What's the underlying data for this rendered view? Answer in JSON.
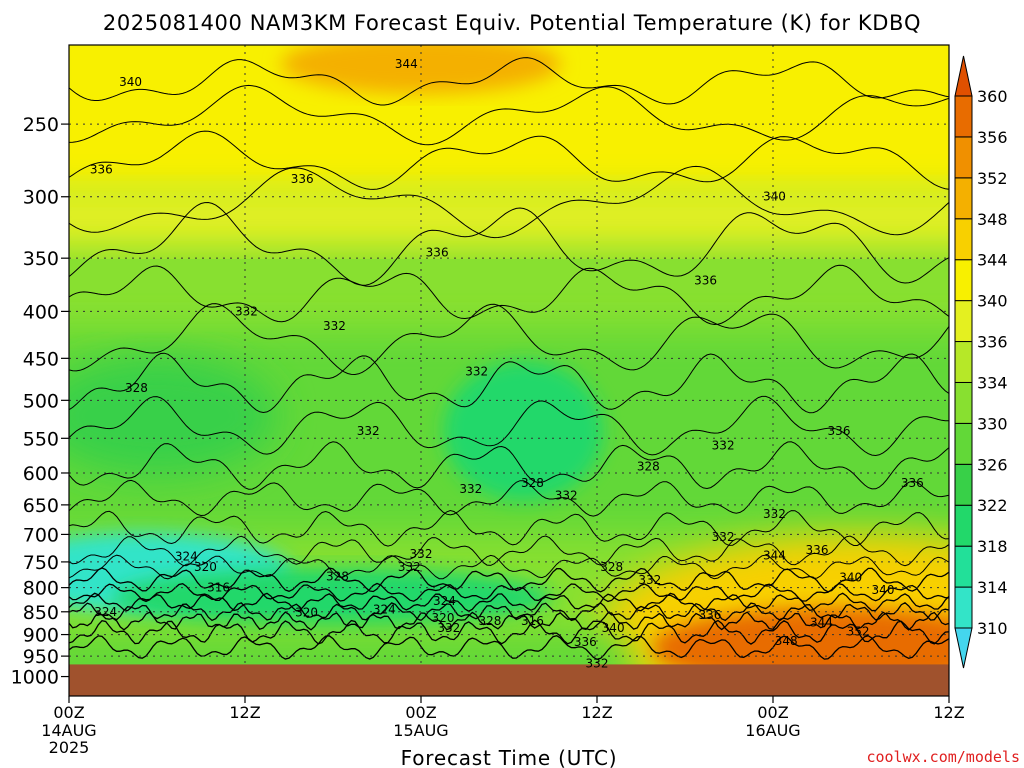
{
  "chart_data": {
    "type": "heatmap",
    "title": "2025081400 NAM3KM Forecast Equiv. Potential Temperature (K) for KDBQ",
    "xlabel": "Forecast Time (UTC)",
    "ylabel": "",
    "y_scale": "log",
    "y_reversed": true,
    "x_range_hours": [
      0,
      60
    ],
    "x_ticks": [
      {
        "hour": 0,
        "label": "00Z",
        "sublabels": [
          "14AUG",
          "2025"
        ]
      },
      {
        "hour": 12,
        "label": "12Z",
        "sublabels": []
      },
      {
        "hour": 24,
        "label": "00Z",
        "sublabels": [
          "15AUG"
        ]
      },
      {
        "hour": 36,
        "label": "12Z",
        "sublabels": []
      },
      {
        "hour": 48,
        "label": "00Z",
        "sublabels": [
          "16AUG"
        ]
      },
      {
        "hour": 60,
        "label": "12Z",
        "sublabels": []
      }
    ],
    "y_ticks": [
      250,
      300,
      350,
      400,
      450,
      500,
      550,
      600,
      650,
      700,
      750,
      800,
      850,
      900,
      950,
      1000
    ],
    "y_range": [
      205,
      1050
    ],
    "ground_level": 970,
    "grid": true,
    "colorbar": {
      "labels": [
        310,
        314,
        318,
        322,
        326,
        330,
        334,
        336,
        340,
        344,
        348,
        352,
        356,
        360
      ],
      "colors": [
        "#44d6ee",
        "#33e4c8",
        "#22e099",
        "#22d86a",
        "#38d048",
        "#62d838",
        "#88e030",
        "#b6e828",
        "#e4f020",
        "#f8f000",
        "#f8d000",
        "#f4b000",
        "#f09000",
        "#e86c00",
        "#e05000"
      ]
    },
    "background_colors": {
      "upper": "#f8e400",
      "mid": "#a8e030",
      "low": "#50c848",
      "cold_core": "#30e4c0",
      "warm_core": "#f29c00",
      "ground": "#a0522d"
    },
    "contour_labels": [
      {
        "text": "344",
        "hour": 23.0,
        "p": 215
      },
      {
        "text": "340",
        "hour": 4.2,
        "p": 225
      },
      {
        "text": "336",
        "hour": 2.2,
        "p": 280
      },
      {
        "text": "336",
        "hour": 15.9,
        "p": 287
      },
      {
        "text": "340",
        "hour": 48.1,
        "p": 300
      },
      {
        "text": "336",
        "hour": 25.1,
        "p": 345
      },
      {
        "text": "336",
        "hour": 43.4,
        "p": 370
      },
      {
        "text": "332",
        "hour": 12.1,
        "p": 400
      },
      {
        "text": "332",
        "hour": 18.1,
        "p": 415
      },
      {
        "text": "332",
        "hour": 27.8,
        "p": 465
      },
      {
        "text": "328",
        "hour": 4.6,
        "p": 485
      },
      {
        "text": "332",
        "hour": 20.4,
        "p": 540
      },
      {
        "text": "336",
        "hour": 52.5,
        "p": 540
      },
      {
        "text": "332",
        "hour": 44.6,
        "p": 560
      },
      {
        "text": "328",
        "hour": 39.5,
        "p": 590
      },
      {
        "text": "336",
        "hour": 57.5,
        "p": 615
      },
      {
        "text": "328",
        "hour": 31.6,
        "p": 615
      },
      {
        "text": "332",
        "hour": 33.9,
        "p": 635
      },
      {
        "text": "332",
        "hour": 27.4,
        "p": 625
      },
      {
        "text": "332",
        "hour": 48.1,
        "p": 665
      },
      {
        "text": "332",
        "hour": 44.6,
        "p": 705
      },
      {
        "text": "336",
        "hour": 51.0,
        "p": 728
      },
      {
        "text": "344",
        "hour": 48.1,
        "p": 738
      },
      {
        "text": "324",
        "hour": 8.0,
        "p": 740
      },
      {
        "text": "332",
        "hour": 24.0,
        "p": 735
      },
      {
        "text": "320",
        "hour": 9.3,
        "p": 760
      },
      {
        "text": "332",
        "hour": 23.2,
        "p": 760
      },
      {
        "text": "328",
        "hour": 37.0,
        "p": 760
      },
      {
        "text": "328",
        "hour": 18.3,
        "p": 778
      },
      {
        "text": "340",
        "hour": 53.3,
        "p": 780
      },
      {
        "text": "332",
        "hour": 39.6,
        "p": 785
      },
      {
        "text": "316",
        "hour": 10.2,
        "p": 800
      },
      {
        "text": "340",
        "hour": 55.5,
        "p": 805
      },
      {
        "text": "324",
        "hour": 25.6,
        "p": 827
      },
      {
        "text": "324",
        "hour": 21.5,
        "p": 845
      },
      {
        "text": "320",
        "hour": 16.2,
        "p": 852
      },
      {
        "text": "324",
        "hour": 2.5,
        "p": 850
      },
      {
        "text": "336",
        "hour": 43.7,
        "p": 857
      },
      {
        "text": "320",
        "hour": 25.5,
        "p": 863
      },
      {
        "text": "328",
        "hour": 28.7,
        "p": 870
      },
      {
        "text": "316",
        "hour": 31.6,
        "p": 870
      },
      {
        "text": "340",
        "hour": 37.1,
        "p": 885
      },
      {
        "text": "344",
        "hour": 51.3,
        "p": 873
      },
      {
        "text": "352",
        "hour": 53.8,
        "p": 893
      },
      {
        "text": "332",
        "hour": 25.9,
        "p": 885
      },
      {
        "text": "348",
        "hour": 48.9,
        "p": 915
      },
      {
        "text": "336",
        "hour": 35.2,
        "p": 917
      },
      {
        "text": "332",
        "hour": 36.0,
        "p": 968
      }
    ],
    "watermark": "coolwx.com/models"
  }
}
